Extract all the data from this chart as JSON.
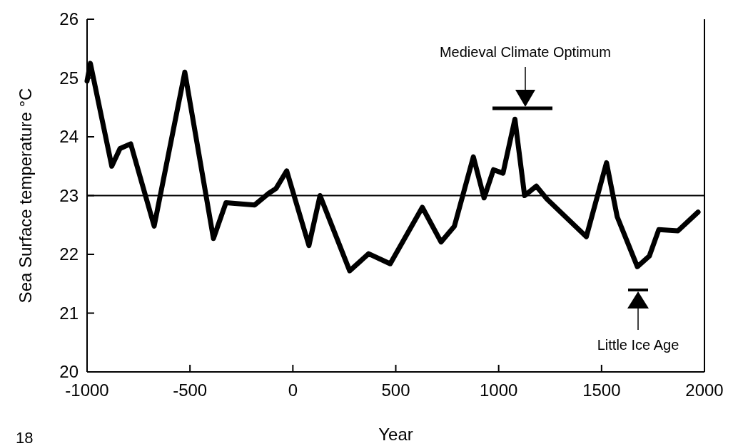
{
  "chart_data": {
    "type": "line",
    "xlabel": "Year",
    "ylabel": "Sea Surface temperature °C",
    "x": [
      -1000,
      -984,
      -880,
      -840,
      -788,
      -674,
      -525,
      -386,
      -325,
      -186,
      -117,
      -82,
      -30,
      78,
      132,
      276,
      368,
      473,
      629,
      720,
      785,
      877,
      929,
      975,
      1021,
      1079,
      1126,
      1183,
      1235,
      1426,
      1524,
      1576,
      1674,
      1732,
      1778,
      1871,
      1969
    ],
    "series": [
      {
        "color": "#000000",
        "values": [
          24.95,
          25.25,
          23.5,
          23.8,
          23.88,
          22.48,
          25.1,
          22.27,
          22.88,
          22.84,
          23.04,
          23.12,
          23.42,
          22.15,
          23.0,
          21.72,
          22.01,
          21.84,
          22.8,
          22.21,
          22.48,
          23.66,
          22.96,
          23.44,
          23.38,
          24.3,
          23.0,
          23.16,
          22.94,
          22.3,
          23.56,
          22.64,
          21.79,
          21.97,
          22.42,
          22.4,
          22.72
        ]
      }
    ],
    "xlim": [
      -1000,
      2000
    ],
    "xticks": [
      -1000,
      -500,
      0,
      500,
      1000,
      1500,
      2000
    ],
    "ylim": [
      20,
      26
    ],
    "yticks": [
      20,
      21,
      22,
      23,
      24,
      25,
      26
    ],
    "ref_lines": [
      {
        "axis": "y",
        "value": 23,
        "color": "#000000"
      }
    ],
    "annotations": [
      "Medieval Climate Optimum",
      "Little Ice Age",
      "18"
    ],
    "grid": false,
    "marker": "none",
    "line_style": "solid"
  }
}
